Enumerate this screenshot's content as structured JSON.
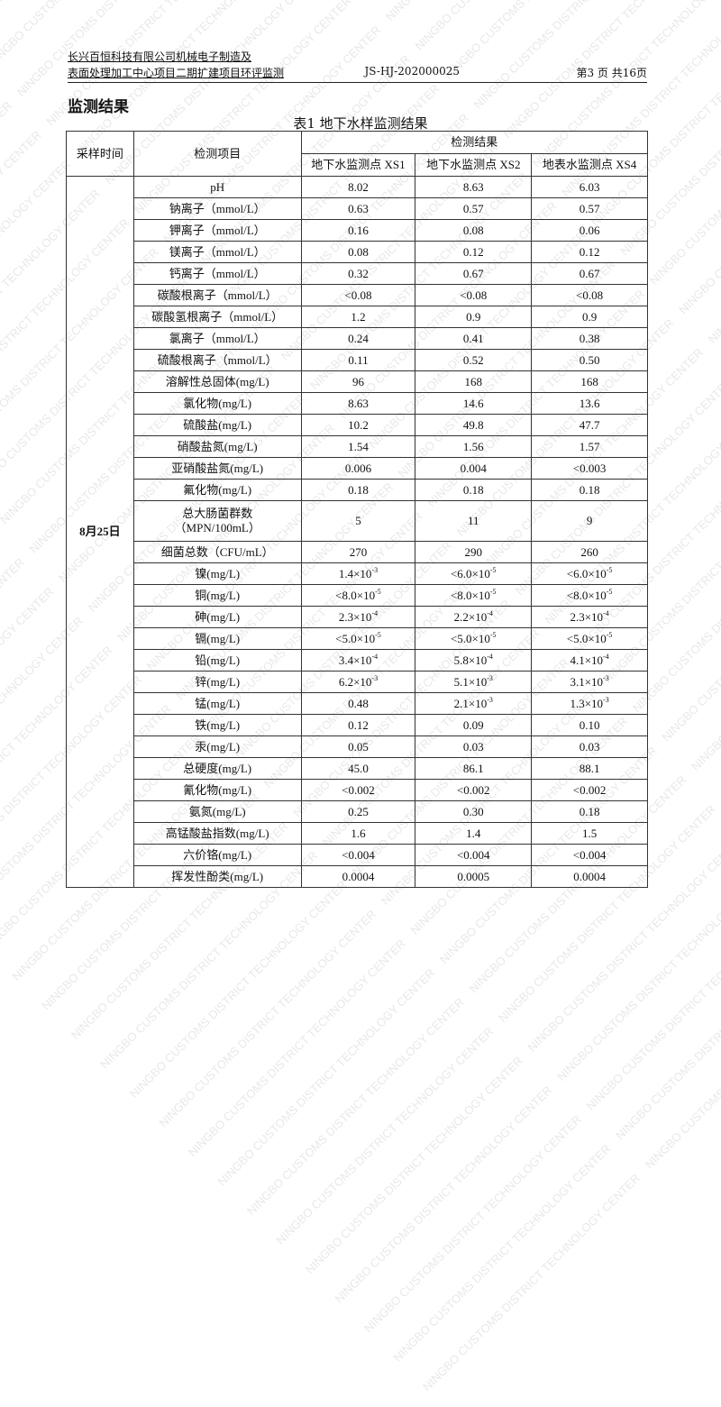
{
  "watermark": "NINGBO CUSTOMS DISTRICT TECHNOLOGY CENTER",
  "header": {
    "line1": "长兴百恒科技有限公司机械电子制造及",
    "line2": "表面处理加工中心项目二期扩建项目环评监测",
    "report_no": "JS-HJ-202000025",
    "page": "第3 页 共16页"
  },
  "section_title": "监测结果",
  "table": {
    "caption": "表1 地下水样监测结果",
    "col_time": "采样时间",
    "col_item": "检测项目",
    "col_results": "检测结果",
    "points": [
      "地下水监测点 XS1",
      "地下水监测点 XS2",
      "地表水监测点 XS4"
    ],
    "date": "8月25日",
    "rows": [
      {
        "item": "pH",
        "v": [
          "8.02",
          "8.63",
          "6.03"
        ]
      },
      {
        "item": "钠离子（mmol/L）",
        "v": [
          "0.63",
          "0.57",
          "0.57"
        ]
      },
      {
        "item": "钾离子（mmol/L）",
        "v": [
          "0.16",
          "0.08",
          "0.06"
        ]
      },
      {
        "item": "镁离子（mmol/L）",
        "v": [
          "0.08",
          "0.12",
          "0.12"
        ]
      },
      {
        "item": "钙离子（mmol/L）",
        "v": [
          "0.32",
          "0.67",
          "0.67"
        ]
      },
      {
        "item": "碳酸根离子（mmol/L）",
        "v": [
          "<0.08",
          "<0.08",
          "<0.08"
        ]
      },
      {
        "item": "碳酸氢根离子（mmol/L）",
        "v": [
          "1.2",
          "0.9",
          "0.9"
        ]
      },
      {
        "item": "氯离子（mmol/L）",
        "v": [
          "0.24",
          "0.41",
          "0.38"
        ]
      },
      {
        "item": "硫酸根离子（mmol/L）",
        "v": [
          "0.11",
          "0.52",
          "0.50"
        ]
      },
      {
        "item": "溶解性总固体(mg/L)",
        "v": [
          "96",
          "168",
          "168"
        ]
      },
      {
        "item": "氯化物(mg/L)",
        "v": [
          "8.63",
          "14.6",
          "13.6"
        ]
      },
      {
        "item": "硫酸盐(mg/L)",
        "v": [
          "10.2",
          "49.8",
          "47.7"
        ]
      },
      {
        "item": "硝酸盐氮(mg/L)",
        "v": [
          "1.54",
          "1.56",
          "1.57"
        ]
      },
      {
        "item": "亚硝酸盐氮(mg/L)",
        "v": [
          "0.006",
          "0.004",
          "<0.003"
        ]
      },
      {
        "item": "氟化物(mg/L)",
        "v": [
          "0.18",
          "0.18",
          "0.18"
        ]
      },
      {
        "item": "总大肠菌群数",
        "item2": "（MPN/100mL）",
        "v": [
          "5",
          "11",
          "9"
        ]
      },
      {
        "item": "细菌总数（CFU/mL）",
        "v": [
          "270",
          "290",
          "260"
        ]
      },
      {
        "item": "镍(mg/L)",
        "v": [
          {
            "m": "1.4×10",
            "e": "-3"
          },
          {
            "m": "<6.0×10",
            "e": "-5"
          },
          {
            "m": "<6.0×10",
            "e": "-5"
          }
        ]
      },
      {
        "item": "铜(mg/L)",
        "v": [
          {
            "m": "<8.0×10",
            "e": "-5"
          },
          {
            "m": "<8.0×10",
            "e": "-5"
          },
          {
            "m": "<8.0×10",
            "e": "-5"
          }
        ]
      },
      {
        "item": "砷(mg/L)",
        "v": [
          {
            "m": "2.3×10",
            "e": "-4"
          },
          {
            "m": "2.2×10",
            "e": "-4"
          },
          {
            "m": "2.3×10",
            "e": "-4"
          }
        ]
      },
      {
        "item": "镉(mg/L)",
        "v": [
          {
            "m": "<5.0×10",
            "e": "-5"
          },
          {
            "m": "<5.0×10",
            "e": "-5"
          },
          {
            "m": "<5.0×10",
            "e": "-5"
          }
        ]
      },
      {
        "item": "铅(mg/L)",
        "v": [
          {
            "m": "3.4×10",
            "e": "-4"
          },
          {
            "m": "5.8×10",
            "e": "-4"
          },
          {
            "m": "4.1×10",
            "e": "-4"
          }
        ]
      },
      {
        "item": "锌(mg/L)",
        "v": [
          {
            "m": "6.2×10",
            "e": "-3"
          },
          {
            "m": "5.1×10",
            "e": "-3"
          },
          {
            "m": "3.1×10",
            "e": "-3"
          }
        ]
      },
      {
        "item": "锰(mg/L)",
        "v": [
          "0.48",
          {
            "m": "2.1×10",
            "e": "-3"
          },
          {
            "m": "1.3×10",
            "e": "-3"
          }
        ]
      },
      {
        "item": "铁(mg/L)",
        "v": [
          "0.12",
          "0.09",
          "0.10"
        ]
      },
      {
        "item": "汞(mg/L)",
        "v": [
          "0.05",
          "0.03",
          "0.03"
        ]
      },
      {
        "item": "总硬度(mg/L)",
        "v": [
          "45.0",
          "86.1",
          "88.1"
        ]
      },
      {
        "item": "氰化物(mg/L)",
        "v": [
          "<0.002",
          "<0.002",
          "<0.002"
        ]
      },
      {
        "item": "氨氮(mg/L)",
        "v": [
          "0.25",
          "0.30",
          "0.18"
        ]
      },
      {
        "item": "高锰酸盐指数(mg/L)",
        "v": [
          "1.6",
          "1.4",
          "1.5"
        ]
      },
      {
        "item": "六价铬(mg/L)",
        "v": [
          "<0.004",
          "<0.004",
          "<0.004"
        ]
      },
      {
        "item": "挥发性酚类(mg/L)",
        "v": [
          "0.0004",
          "0.0005",
          "0.0004"
        ]
      }
    ]
  }
}
